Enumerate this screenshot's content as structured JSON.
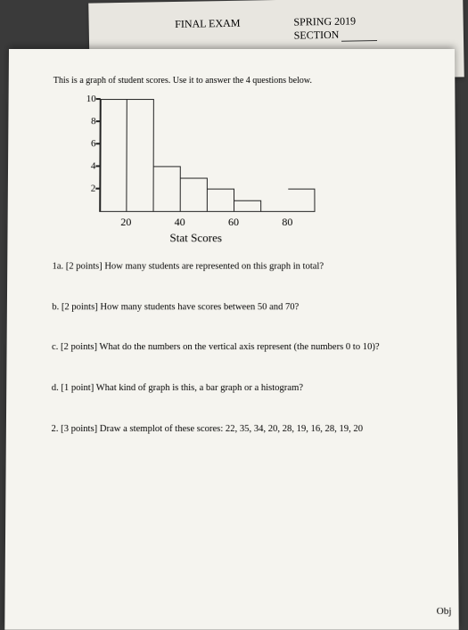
{
  "back_paper": {
    "left_text": "FINAL EXAM",
    "right_top": "SPRING 2019",
    "right_bottom": "SECTION"
  },
  "instruction": "This is a graph of student scores. Use it to answer the 4 questions below.",
  "chart": {
    "type": "histogram",
    "title": "Stat Scores",
    "ylim": [
      0,
      10
    ],
    "y_ticks": [
      2,
      4,
      6,
      8,
      10
    ],
    "x_ticks": [
      20,
      40,
      60,
      80
    ],
    "bar_width_units": 10,
    "x_range": [
      10,
      90
    ],
    "bars": [
      {
        "x_start": 10,
        "height": 10
      },
      {
        "x_start": 20,
        "height": 10
      },
      {
        "x_start": 30,
        "height": 4
      },
      {
        "x_start": 40,
        "height": 3
      },
      {
        "x_start": 50,
        "height": 2
      },
      {
        "x_start": 60,
        "height": 1
      },
      {
        "x_start": 70,
        "height": 0
      },
      {
        "x_start": 80,
        "height": 2
      }
    ],
    "axis_color": "#222222",
    "bar_border_color": "#222222",
    "background_color": "#f5f4ef",
    "label_fontsize": 12
  },
  "questions": {
    "q1a": "1a. [2 points] How many students are represented on this graph in total?",
    "q1b": "b. [2 points] How many students have scores between 50 and 70?",
    "q1c": "c. [2 points] What do the numbers on the vertical axis represent (the numbers 0 to 10)?",
    "q1d": "d. [1 point] What kind of graph is this, a bar graph or a histogram?",
    "q2": "2. [3 points] Draw a stemplot of these scores: 22, 35, 34, 20, 28, 19, 16, 28, 19, 20"
  },
  "corner": "Obj"
}
